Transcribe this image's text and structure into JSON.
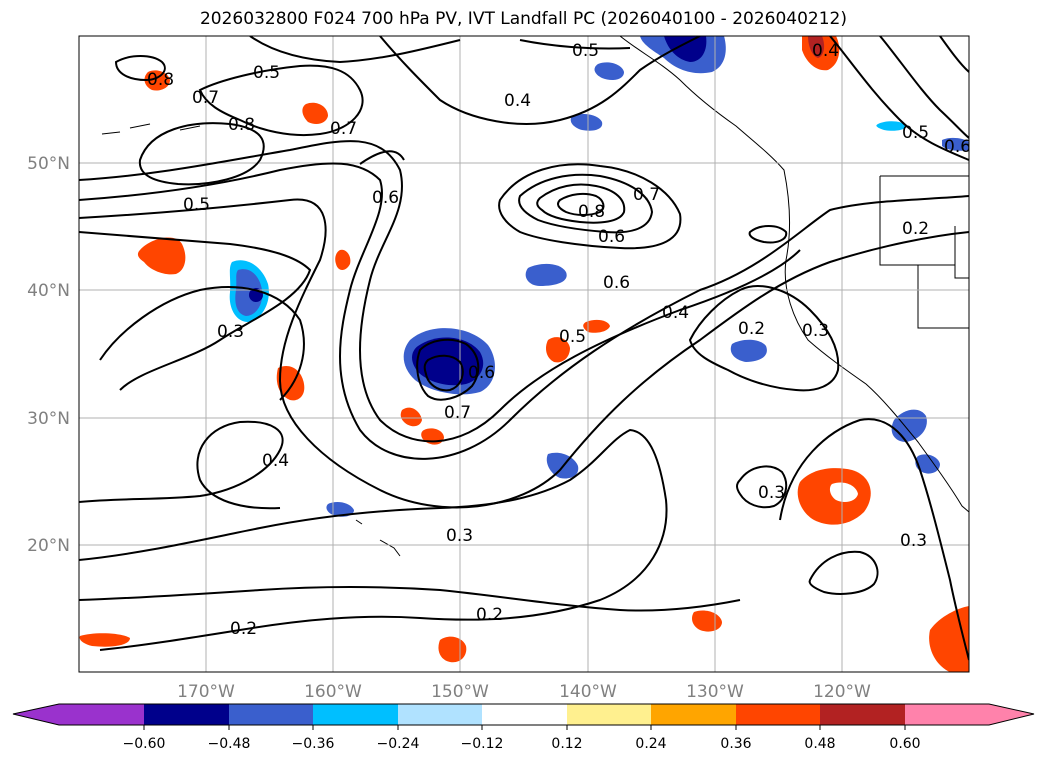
{
  "title": "2026032800 F024 700 hPa PV, IVT Landfall PC (2026040100 - 2026040212)",
  "colors": {
    "neg_0.72": "#9a32cd",
    "neg_0.60": "#00008b",
    "neg_0.48": "#3a5fcd",
    "neg_0.36": "#00bfff",
    "neg_0.24": "#b0e2ff",
    "neutral": "#ffffff",
    "pos_0.12": "#fff08f",
    "pos_0.24": "#ffa500",
    "pos_0.36": "#ff4500",
    "pos_0.48": "#b22222",
    "pos_0.60": "#ff82ab"
  },
  "lat_labels": [
    "50°N",
    "40°N",
    "30°N",
    "20°N"
  ],
  "lon_labels": [
    "170°W",
    "160°W",
    "150°W",
    "140°W",
    "130°W",
    "120°W"
  ],
  "colorbar_labels": [
    "−0.60",
    "−0.48",
    "−0.36",
    "−0.24",
    "−0.12",
    "0.12",
    "0.24",
    "0.36",
    "0.48",
    "0.60"
  ],
  "contour_labels": [
    {
      "text": "0.8"
    },
    {
      "text": "0.5"
    },
    {
      "text": "0.7"
    },
    {
      "text": "0.8"
    },
    {
      "text": "0.7"
    },
    {
      "text": "0.5"
    },
    {
      "text": "0.6"
    },
    {
      "text": "0.4"
    },
    {
      "text": "0.5"
    },
    {
      "text": "0.7"
    },
    {
      "text": "0.8"
    },
    {
      "text": "0.6"
    },
    {
      "text": "0.6"
    },
    {
      "text": "0.4"
    },
    {
      "text": "0.5"
    },
    {
      "text": "0.6"
    },
    {
      "text": "0.7"
    },
    {
      "text": "0.3"
    },
    {
      "text": "0.4"
    },
    {
      "text": "0.3"
    },
    {
      "text": "0.2"
    },
    {
      "text": "0.2"
    },
    {
      "text": "0.2"
    },
    {
      "text": "0.3"
    },
    {
      "text": "0.3"
    },
    {
      "text": "0.3"
    },
    {
      "text": "0.5"
    },
    {
      "text": "0.6"
    },
    {
      "text": "0.2"
    },
    {
      "text": "0.4"
    }
  ]
}
